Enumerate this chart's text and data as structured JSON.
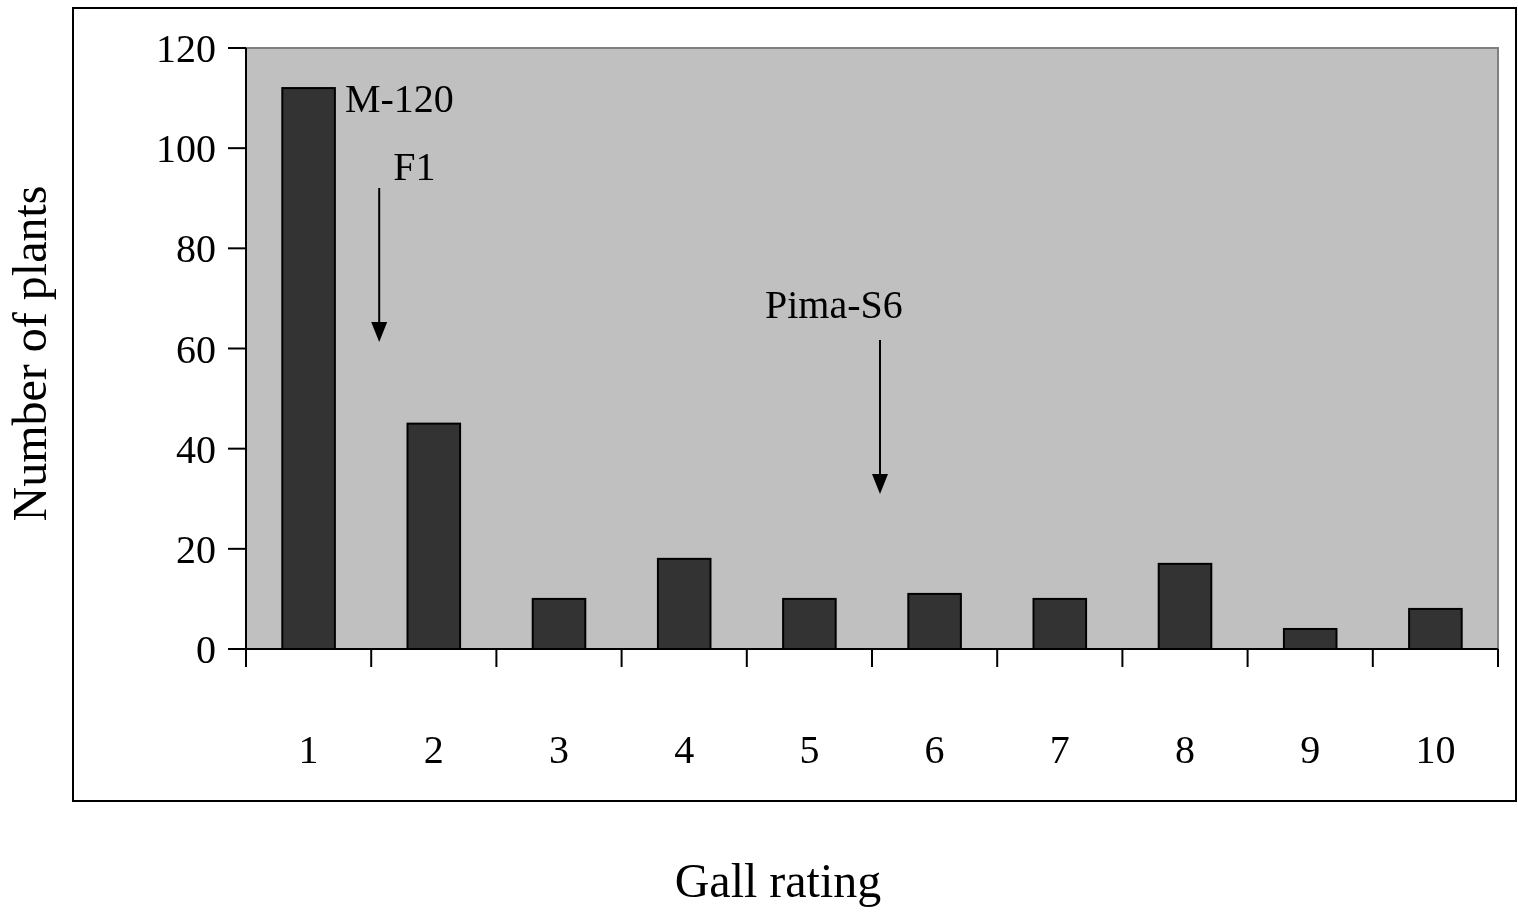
{
  "chart_data": {
    "type": "bar",
    "xlabel": "Gall rating",
    "ylabel": "Number of plants",
    "categories": [
      "1",
      "2",
      "3",
      "4",
      "5",
      "6",
      "7",
      "8",
      "9",
      "10"
    ],
    "values": [
      112,
      45,
      10,
      18,
      10,
      11,
      10,
      17,
      4,
      8
    ],
    "color": "#333333",
    "ylim": [
      0,
      120
    ],
    "yticks": [
      0,
      20,
      40,
      60,
      80,
      100,
      120
    ],
    "grid": false,
    "annotations": [
      {
        "text": "M-120",
        "x": "1",
        "y": 112
      },
      "F1",
      "Pima-S6"
    ]
  }
}
